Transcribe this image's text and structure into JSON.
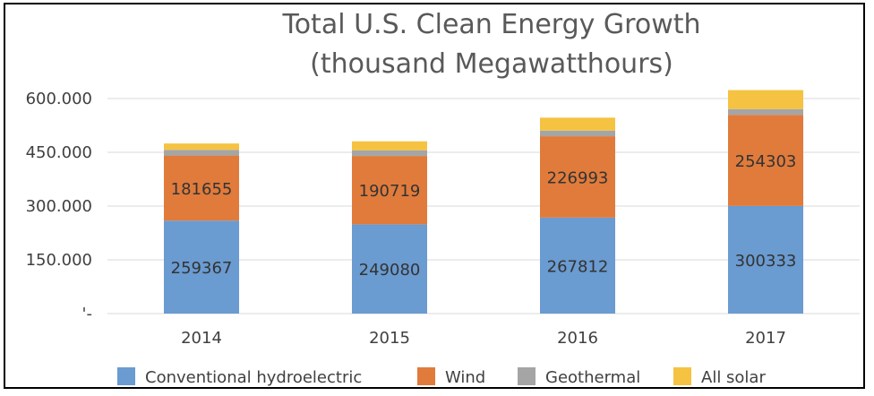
{
  "chart_data": {
    "type": "bar",
    "stacked": true,
    "title_lines": [
      "Total U.S.  Clean Energy Growth",
      "(thousand Megawatthours)"
    ],
    "categories": [
      "2014",
      "2015",
      "2016",
      "2017"
    ],
    "y_tick_labels": [
      "'-",
      "150.000",
      "300.000",
      "450.000",
      "600.000"
    ],
    "y_tick_values": [
      0,
      150000,
      300000,
      450000,
      600000
    ],
    "ylim": [
      0,
      600000
    ],
    "grid": true,
    "legend_position": "bottom",
    "series": [
      {
        "name": "Conventional hydroelectric",
        "color": "#6a9bd1",
        "values": [
          259367,
          249080,
          267812,
          300333
        ],
        "labels": [
          "259367",
          "249080",
          "267812",
          "300333"
        ]
      },
      {
        "name": "Wind",
        "color": "#e07b3c",
        "values": [
          181655,
          190719,
          226993,
          254303
        ],
        "labels": [
          "181655",
          "190719",
          "226993",
          "254303"
        ]
      },
      {
        "name": "Geothermal",
        "color": "#a5a5a5",
        "values": [
          15877,
          15918,
          15826,
          15927
        ]
      },
      {
        "name": "All solar",
        "color": "#f5c242",
        "values": [
          17691,
          24893,
          36054,
          52958
        ]
      }
    ]
  }
}
